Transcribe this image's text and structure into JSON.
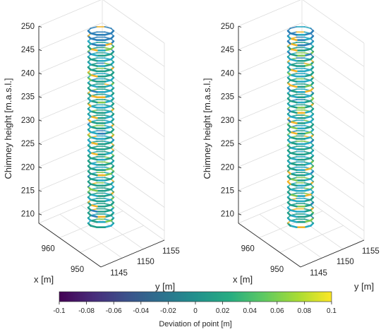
{
  "chart_data": [
    {
      "type": "scatter3d",
      "panel": "left",
      "zlabel": "Chimney height [m.a.s.l.]",
      "xlabel": "x [m]",
      "ylabel": "y [m]",
      "z_ticks": [
        210,
        215,
        220,
        225,
        230,
        235,
        240,
        245,
        250
      ],
      "x_ticks": [
        950,
        960
      ],
      "y_ticks": [
        1145,
        1150,
        1155
      ],
      "zlim": [
        208,
        250
      ],
      "helix": {
        "z_bottom": 208,
        "z_top": 249,
        "turns": 38
      },
      "color_variable": "Deviation of point [m]",
      "clim": [
        -0.1,
        0.1
      ],
      "grid": true
    },
    {
      "type": "scatter3d",
      "panel": "right",
      "zlabel": "Chimney height [m.a.s.l.]",
      "xlabel": "x [m]",
      "ylabel": "y [m]",
      "z_ticks": [
        210,
        215,
        220,
        225,
        230,
        235,
        240,
        245,
        250
      ],
      "x_ticks": [
        950,
        960
      ],
      "y_ticks": [
        1145,
        1150,
        1155
      ],
      "zlim": [
        208,
        250
      ],
      "helix": {
        "z_bottom": 208,
        "z_top": 249,
        "turns": 38
      },
      "color_variable": "Deviation of point [m]",
      "clim": [
        -0.1,
        0.1
      ],
      "grid": true
    }
  ],
  "colorbar": {
    "ticks": [
      "-0.1",
      "-0.08",
      "-0.06",
      "-0.04",
      "-0.02",
      "0",
      "0.02",
      "0.04",
      "0.06",
      "0.08",
      "0.1"
    ],
    "label": "Deviation of point [m]",
    "colormap": [
      "#440154",
      "#3b528b",
      "#21908d",
      "#5dc962",
      "#fde725"
    ],
    "helix_colors": [
      "#1f9e89",
      "#26a9c2",
      "#2c7fb8",
      "#7ec850",
      "#f0b429",
      "#fde725"
    ]
  }
}
